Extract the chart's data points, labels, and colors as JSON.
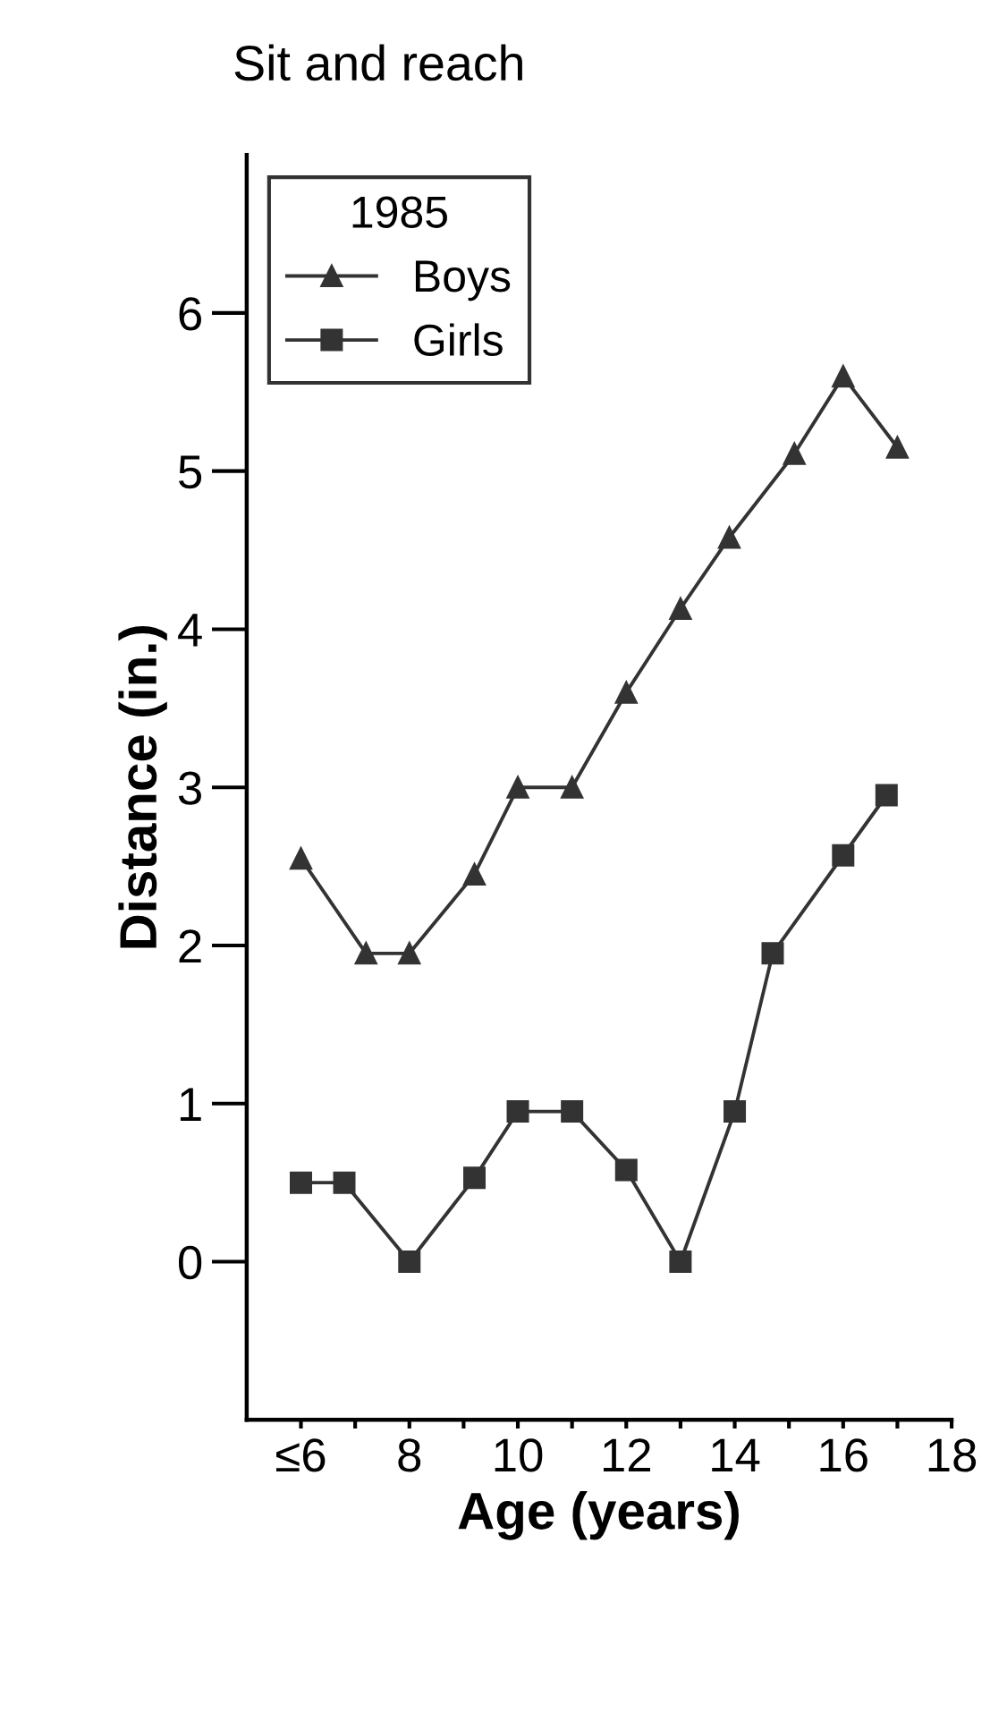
{
  "chart_data": {
    "type": "line",
    "title": "Sit and reach",
    "xlabel": "Age (years)",
    "ylabel": "Distance (in.)",
    "legend_title": "1985",
    "legend": "top left",
    "grid": false,
    "xlim": [
      5,
      18
    ],
    "xticks": [
      {
        "value": 6,
        "label": "≤6"
      },
      {
        "value": 7,
        "label": null
      },
      8,
      {
        "value": 9,
        "label": null
      },
      10,
      {
        "value": 11,
        "label": null
      },
      12,
      {
        "value": 13,
        "label": null
      },
      14,
      {
        "value": 15,
        "label": null
      },
      16,
      {
        "value": 17,
        "label": null
      },
      18
    ],
    "ylim": [
      -1,
      7
    ],
    "yticks": [
      0,
      1,
      2,
      3,
      4,
      5,
      6
    ],
    "series": [
      {
        "name": "Boys",
        "color": "#333333",
        "marker": "triangle",
        "x": [
          6,
          7.2,
          8,
          9.2,
          10,
          11,
          12,
          13,
          13.9,
          15.1,
          16,
          17
        ],
        "values": [
          2.55,
          1.95,
          1.95,
          2.45,
          3.0,
          3.0,
          3.6,
          4.13,
          4.58,
          5.11,
          5.6,
          5.15
        ]
      },
      {
        "name": "Girls",
        "color": "#333333",
        "marker": "square",
        "x": [
          6,
          6.8,
          8,
          9.2,
          10,
          11,
          12,
          13,
          14,
          14.7,
          16,
          16.8
        ],
        "values": [
          0.5,
          0.5,
          0.0,
          0.53,
          0.95,
          0.95,
          0.58,
          0.0,
          0.95,
          1.95,
          2.57,
          2.95
        ]
      }
    ]
  }
}
